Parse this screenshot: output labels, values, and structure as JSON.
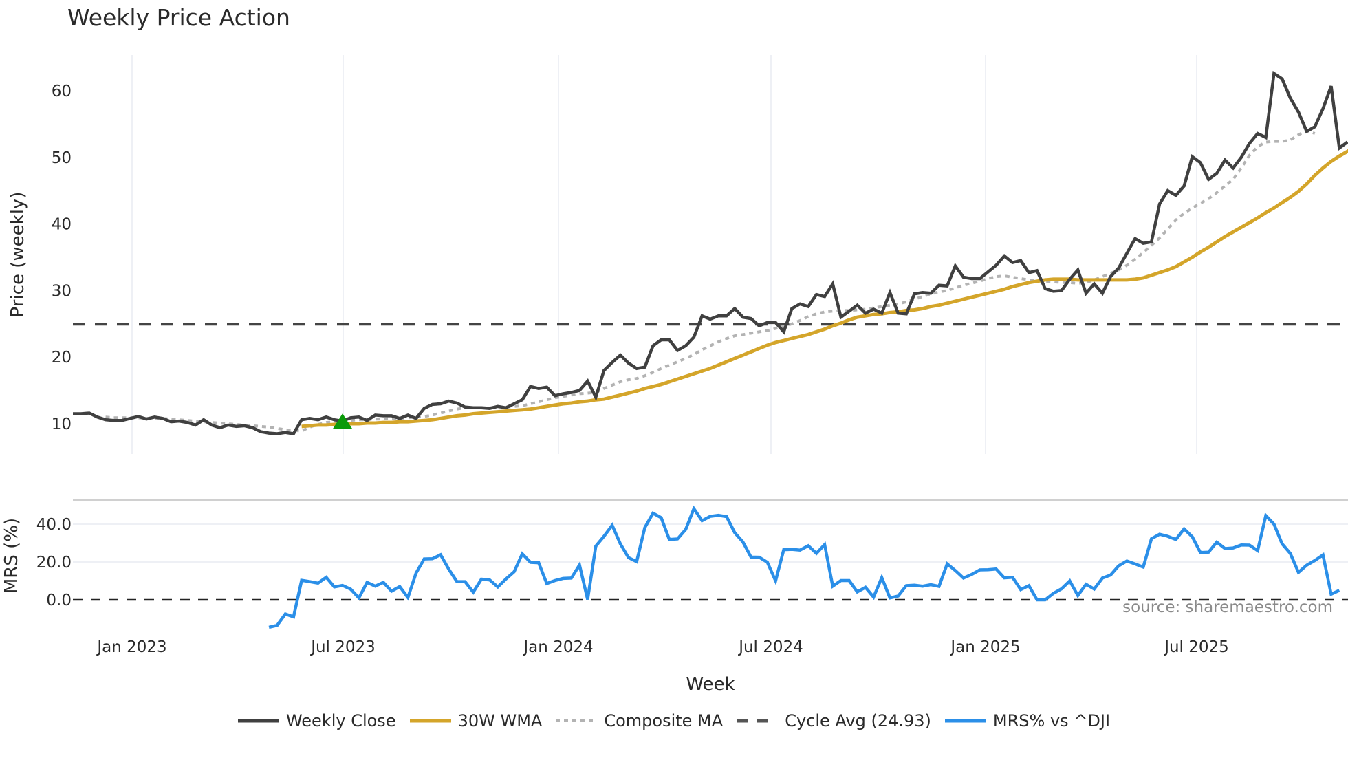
{
  "header": {
    "title": "Weekly Price Action"
  },
  "watermark": "source: sharemaestro.com",
  "axes": {
    "price_ylabel": "Price (weekly)",
    "mrs_ylabel": "MRS (%)",
    "xlabel": "Week",
    "price_yticks": [
      "10",
      "20",
      "30",
      "40",
      "50",
      "60"
    ],
    "mrs_yticks": [
      "0.0",
      "20.0",
      "40.0"
    ],
    "xticks": [
      "Jan 2023",
      "Jul 2023",
      "Jan 2024",
      "Jul 2024",
      "Jan 2025",
      "Jul 2025"
    ]
  },
  "legend": [
    {
      "label": "Weekly Close",
      "color": "#404040",
      "style": "solid"
    },
    {
      "label": "30W WMA",
      "color": "#d4a52a",
      "style": "solid"
    },
    {
      "label": "Composite MA",
      "color": "#b3b3b3",
      "style": "dotted"
    },
    {
      "label": "Cycle Avg (24.93)",
      "color": "#555555",
      "style": "dashed"
    },
    {
      "label": "MRS% vs ^DJI",
      "color": "#2b8fe8",
      "style": "solid"
    }
  ],
  "chart_data": [
    {
      "type": "line",
      "title": "Weekly Price Action",
      "xlabel": "Week",
      "ylabel": "Price (weekly)",
      "ylim": [
        5,
        65
      ],
      "x_start": "2022-11-13",
      "x_step": "1 week",
      "xticks": [
        "Jan 2023",
        "Jul 2023",
        "Jan 2024",
        "Jul 2024",
        "Jan 2025",
        "Jul 2025"
      ],
      "grid": "vertical",
      "hline": {
        "name": "Cycle Avg (24.93)",
        "value": 24.93
      },
      "marker": {
        "type": "triangle-up",
        "color": "#0a9a0a",
        "index": 33,
        "value": 10.3
      },
      "series": [
        {
          "name": "Weekly Close",
          "color": "#404040",
          "start_index": 0,
          "values": [
            11.5,
            11.5,
            11.6,
            11.0,
            10.6,
            10.5,
            10.5,
            10.8,
            11.1,
            10.7,
            11.0,
            10.8,
            10.3,
            10.4,
            10.2,
            9.8,
            10.6,
            9.8,
            9.4,
            9.8,
            9.6,
            9.7,
            9.4,
            8.8,
            8.6,
            8.5,
            8.7,
            8.5,
            10.6,
            10.8,
            10.6,
            11.0,
            10.6,
            10.4,
            10.9,
            11.0,
            10.5,
            11.3,
            11.2,
            11.2,
            10.8,
            11.3,
            10.8,
            12.3,
            12.9,
            13.0,
            13.4,
            13.1,
            12.5,
            12.4,
            12.4,
            12.3,
            12.6,
            12.4,
            13.0,
            13.6,
            15.6,
            15.3,
            15.5,
            14.2,
            14.5,
            14.7,
            15.0,
            16.4,
            14.0,
            18.0,
            19.2,
            20.3,
            19.1,
            18.3,
            18.5,
            21.7,
            22.6,
            22.6,
            21.0,
            21.7,
            23.0,
            26.2,
            25.7,
            26.2,
            26.2,
            27.3,
            26.0,
            25.8,
            24.7,
            25.2,
            25.2,
            23.8,
            27.3,
            28.0,
            27.6,
            29.4,
            29.1,
            31.0,
            26.0,
            26.9,
            27.8,
            26.6,
            27.2,
            26.6,
            29.7,
            26.6,
            26.5,
            29.5,
            29.7,
            29.6,
            30.8,
            30.7,
            33.7,
            32.0,
            31.8,
            31.8,
            32.8,
            33.8,
            35.2,
            34.2,
            34.5,
            32.7,
            33.0,
            30.3,
            29.9,
            30.0,
            31.7,
            33.1,
            29.6,
            31.0,
            29.6,
            32.1,
            33.4,
            35.6,
            37.8,
            37.1,
            37.3,
            43.0,
            45.0,
            44.3,
            45.7,
            50.1,
            49.2,
            46.7,
            47.6,
            49.6,
            48.4,
            50.0,
            52.1,
            53.6,
            53.0,
            62.6,
            61.8,
            58.9,
            56.8,
            53.9,
            54.6,
            57.3,
            60.7,
            51.4,
            52.3
          ]
        },
        {
          "name": "30W WMA",
          "color": "#d4a52a",
          "start_index": 28,
          "values": [
            9.6,
            9.7,
            9.8,
            9.8,
            9.9,
            9.9,
            10.0,
            10.0,
            10.1,
            10.1,
            10.2,
            10.2,
            10.3,
            10.3,
            10.4,
            10.5,
            10.6,
            10.8,
            11.0,
            11.2,
            11.3,
            11.5,
            11.6,
            11.7,
            11.8,
            11.9,
            12.0,
            12.1,
            12.2,
            12.4,
            12.6,
            12.8,
            13.0,
            13.1,
            13.3,
            13.4,
            13.6,
            13.7,
            14.0,
            14.3,
            14.6,
            14.9,
            15.3,
            15.6,
            15.9,
            16.3,
            16.7,
            17.1,
            17.5,
            17.9,
            18.3,
            18.8,
            19.3,
            19.8,
            20.3,
            20.8,
            21.3,
            21.8,
            22.2,
            22.5,
            22.8,
            23.1,
            23.4,
            23.8,
            24.2,
            24.7,
            25.1,
            25.6,
            26.0,
            26.2,
            26.4,
            26.5,
            26.7,
            26.8,
            27.0,
            27.1,
            27.3,
            27.6,
            27.8,
            28.1,
            28.4,
            28.7,
            29.0,
            29.3,
            29.6,
            29.9,
            30.2,
            30.6,
            30.9,
            31.2,
            31.4,
            31.6,
            31.7,
            31.7,
            31.7,
            31.6,
            31.6,
            31.6,
            31.6,
            31.6,
            31.6,
            31.6,
            31.7,
            31.9,
            32.3,
            32.7,
            33.1,
            33.6,
            34.3,
            35.0,
            35.8,
            36.5,
            37.3,
            38.1,
            38.8,
            39.5,
            40.2,
            40.9,
            41.7,
            42.4,
            43.2,
            44.0,
            44.9,
            46.0,
            47.3,
            48.4,
            49.4,
            50.2,
            50.9,
            51.7,
            52.5,
            53.0,
            53.1
          ]
        },
        {
          "name": "Composite MA",
          "color": "#b3b3b3",
          "start_index": 4,
          "values": [
            11.0,
            10.9,
            10.9,
            10.9,
            10.9,
            10.8,
            10.8,
            10.8,
            10.7,
            10.6,
            10.5,
            10.4,
            10.3,
            10.2,
            10.1,
            10.0,
            9.9,
            9.8,
            9.7,
            9.6,
            9.5,
            9.3,
            9.1,
            9.0,
            8.9,
            9.5,
            9.9,
            10.2,
            10.3,
            10.4,
            10.5,
            10.6,
            10.6,
            10.7,
            10.7,
            10.8,
            10.8,
            10.9,
            11.0,
            11.1,
            11.3,
            11.6,
            11.9,
            12.2,
            12.4,
            12.4,
            12.4,
            12.4,
            12.5,
            12.5,
            12.6,
            12.7,
            13.0,
            13.3,
            13.6,
            13.9,
            14.1,
            14.3,
            14.5,
            14.6,
            14.7,
            15.3,
            15.8,
            16.3,
            16.6,
            16.8,
            17.2,
            17.7,
            18.3,
            18.8,
            19.3,
            19.8,
            20.4,
            21.1,
            21.7,
            22.3,
            22.8,
            23.2,
            23.4,
            23.6,
            23.8,
            24.0,
            24.3,
            24.6,
            25.0,
            25.5,
            26.1,
            26.5,
            26.8,
            26.9,
            27.0,
            27.0,
            27.1,
            27.2,
            27.4,
            27.6,
            27.8,
            28.0,
            28.3,
            28.7,
            29.1,
            29.5,
            29.8,
            30.0,
            30.4,
            30.8,
            31.1,
            31.4,
            31.8,
            32.1,
            32.2,
            32.0,
            31.8,
            31.6,
            31.4,
            31.4,
            31.3,
            31.2,
            31.2,
            31.1,
            31.2,
            31.6,
            32.1,
            32.6,
            33.1,
            33.8,
            34.7,
            35.7,
            36.8,
            37.9,
            39.2,
            40.6,
            41.6,
            42.4,
            43.1,
            43.8,
            44.7,
            45.7,
            46.7,
            48.4,
            50.3,
            51.6,
            52.3,
            52.4,
            52.4,
            52.6,
            53.4,
            54.0,
            53.6
          ]
        }
      ]
    },
    {
      "type": "line",
      "title": "",
      "xlabel": "Week",
      "ylabel": "MRS (%)",
      "ylim": [
        -18,
        52
      ],
      "x_start": "2022-11-13",
      "x_step": "1 week",
      "hline": {
        "name": "zero",
        "value": 0
      },
      "series": [
        {
          "name": "MRS% vs ^DJI",
          "color": "#2b8fe8",
          "start_index": 24,
          "values": [
            -14.5,
            -13.5,
            -7.5,
            -9.0,
            10.3,
            9.6,
            8.8,
            11.9,
            6.8,
            7.6,
            5.6,
            1.0,
            9.2,
            7.2,
            9.2,
            4.6,
            7.0,
            1.2,
            14.2,
            21.6,
            21.7,
            23.8,
            16.2,
            9.6,
            9.6,
            4.0,
            10.9,
            10.5,
            6.8,
            11.0,
            14.8,
            24.3,
            19.8,
            19.6,
            8.6,
            10.2,
            11.3,
            11.5,
            18.4,
            0.2,
            28.4,
            33.6,
            39.4,
            29.6,
            22.3,
            20.2,
            38.2,
            45.8,
            43.4,
            31.9,
            32.2,
            37.2,
            48.2,
            41.8,
            44.1,
            44.7,
            44.0,
            35.5,
            30.6,
            22.6,
            22.5,
            19.8,
            10.0,
            26.5,
            26.7,
            26.3,
            28.6,
            24.6,
            29.2,
            7.2,
            10.2,
            10.2,
            4.2,
            6.6,
            1.4,
            11.7,
            1.0,
            2.0,
            7.5,
            7.7,
            7.2,
            8.0,
            7.1,
            19.0,
            15.5,
            11.5,
            13.4,
            15.8,
            15.9,
            16.3,
            11.6,
            11.9,
            5.4,
            7.5,
            0.0,
            0.0,
            3.4,
            5.8,
            10.0,
            2.3,
            8.2,
            5.7,
            11.5,
            13.1,
            18.0,
            20.5,
            19.0,
            17.3,
            32.3,
            34.7,
            33.6,
            31.9,
            37.5,
            33.3,
            25.0,
            25.2,
            30.5,
            27.1,
            27.4,
            29.0,
            28.9,
            26.0,
            44.5,
            40.0,
            29.6,
            24.5,
            14.5,
            18.3,
            20.8,
            23.7,
            3.0,
            5.0
          ]
        }
      ]
    }
  ]
}
